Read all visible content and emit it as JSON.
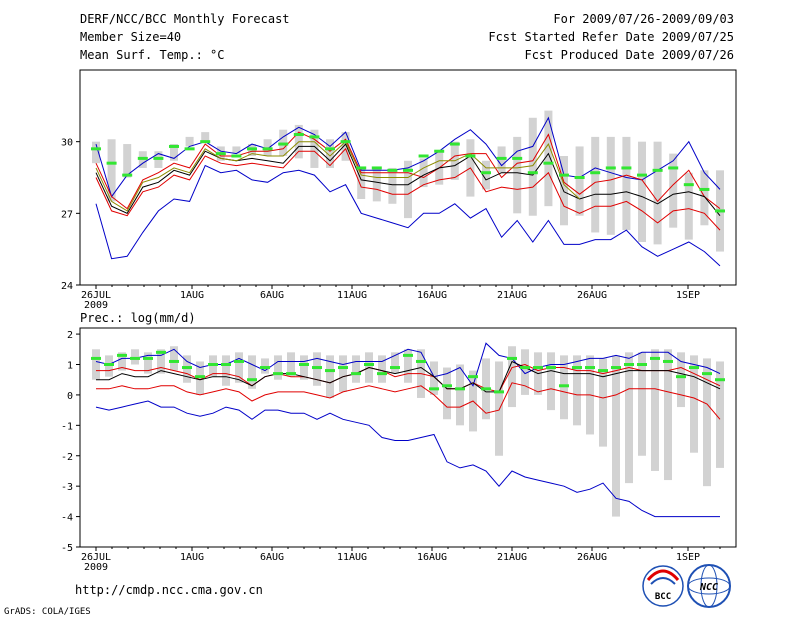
{
  "header": {
    "title": "DERF/NCC/BCC Monthly Forecast",
    "member": "Member Size=40",
    "variable": "Mean Surf. Temp.: °C",
    "period": "For 2009/07/26-2009/09/03",
    "refer": "Fcst Started Refer Date 2009/07/25",
    "produced": "Fcst Produced Date 2009/07/26"
  },
  "footer": {
    "url": "http://cmdp.ncc.cma.gov.cn",
    "grads": "GrADS: COLA/IGES",
    "logo1": "BCC",
    "logo2": "NCC"
  },
  "colors": {
    "blue": "#0000c8",
    "red": "#e00000",
    "black": "#000000",
    "bar": "#d2d2d2",
    "green": "#32e632",
    "olive": "#8c8c00"
  },
  "chart_data": [
    {
      "type": "line",
      "title": "Mean Surf. Temp.: °C",
      "x_labels": [
        "26JUL",
        "1AUG",
        "6AUG",
        "11AUG",
        "16AUG",
        "21AUG",
        "26AUG",
        "1SEP"
      ],
      "x_label_day_index": [
        0,
        6,
        11,
        16,
        21,
        26,
        31,
        37
      ],
      "x_sublabel": "2009",
      "ylim": [
        24,
        33
      ],
      "yticks": [
        24,
        27,
        30
      ],
      "series": [
        {
          "name": "max",
          "color": "#0000c8",
          "values": [
            29.9,
            27.7,
            28.6,
            29.1,
            29.5,
            29.3,
            29.8,
            30,
            29.6,
            29.5,
            29.9,
            29.7,
            30.2,
            30.6,
            30.3,
            29.8,
            30.4,
            28.8,
            28.8,
            28.8,
            28.9,
            29.2,
            29.6,
            30.1,
            30.5,
            29.9,
            29,
            29.6,
            29.8,
            31,
            28.6,
            28.5,
            28.9,
            28.7,
            28.5,
            28.4,
            28.8,
            29.2,
            30,
            28.7,
            28
          ]
        },
        {
          "name": "ens_high",
          "color": "#e00000",
          "values": [
            29.1,
            27.7,
            27.2,
            28.4,
            28.7,
            29.1,
            28.9,
            29.9,
            29.4,
            29.4,
            29.6,
            29.6,
            29.7,
            30.4,
            30.1,
            29.6,
            30.1,
            28.7,
            28.7,
            28.7,
            28.7,
            28.5,
            28.9,
            29.4,
            29.5,
            29.5,
            28.5,
            29.1,
            29.2,
            30.3,
            28.3,
            27.8,
            28.3,
            28.4,
            28.6,
            28.4,
            27.5,
            28.2,
            28.8,
            27.7,
            27.2
          ]
        },
        {
          "name": "ens_mean",
          "color": "#000000",
          "values": [
            28.7,
            27.3,
            27,
            28.1,
            28.3,
            28.8,
            28.6,
            29.6,
            29.3,
            29.2,
            29.3,
            29.2,
            29.1,
            29.8,
            29.8,
            29.2,
            29.9,
            28.4,
            28.3,
            28.2,
            28.2,
            28.6,
            28.9,
            29,
            29.4,
            28.4,
            28.7,
            28.7,
            28.6,
            29.5,
            27.9,
            27.6,
            27.8,
            27.8,
            27.9,
            27.7,
            27.4,
            27.8,
            27.9,
            27.7,
            26.9
          ]
        },
        {
          "name": "ens_low",
          "color": "#e00000",
          "values": [
            28.5,
            27.1,
            26.9,
            27.9,
            28.1,
            28.6,
            28.4,
            29.4,
            29.1,
            29,
            29.1,
            29,
            28.9,
            29.6,
            29.6,
            29,
            29.7,
            28.1,
            28,
            27.8,
            27.8,
            28.2,
            28.4,
            28.5,
            28.9,
            27.9,
            28.1,
            28,
            28.1,
            28.7,
            27.3,
            27,
            27.3,
            27.3,
            27.5,
            27.1,
            26.6,
            27.1,
            27.2,
            27,
            26.3
          ]
        },
        {
          "name": "min",
          "color": "#0000c8",
          "values": [
            27.4,
            25.1,
            25.2,
            26.2,
            27.1,
            27.6,
            27.5,
            29,
            28.7,
            28.8,
            28.4,
            28.3,
            28.7,
            28.8,
            28.6,
            27.9,
            28.2,
            27,
            26.8,
            26.6,
            26.4,
            27,
            27,
            27.4,
            26.8,
            27.2,
            26,
            26.7,
            25.8,
            26.7,
            25.7,
            25.7,
            25.9,
            25.9,
            26.3,
            25.6,
            25.2,
            25.5,
            25.8,
            25.4,
            24.8
          ]
        }
      ],
      "bars": {
        "name": "spread",
        "color": "#d2d2d2",
        "low": [
          29.1,
          27.5,
          28.5,
          28.9,
          28.9,
          29.2,
          29.8,
          30,
          29.2,
          29.5,
          29.4,
          29.4,
          29.4,
          29.3,
          28.9,
          28.9,
          29.2,
          27.6,
          27.5,
          27.4,
          26.8,
          28.1,
          28.2,
          28.4,
          27.7,
          28,
          28.7,
          27,
          26.9,
          27.3,
          26.5,
          26.9,
          26.2,
          26.1,
          26.3,
          25.8,
          25.7,
          26.4,
          25.9,
          26.5,
          25.4
        ],
        "high": [
          30,
          30.1,
          29.9,
          29.6,
          29.6,
          29.9,
          30.2,
          30.4,
          29.8,
          29.8,
          29.9,
          30.1,
          30.5,
          30.7,
          30.5,
          30.1,
          30.4,
          28.9,
          28.9,
          28.9,
          29.2,
          29.3,
          29.6,
          30,
          30.1,
          29.2,
          29.8,
          30.2,
          31,
          31.3,
          29.4,
          29.8,
          30.2,
          30.2,
          30.2,
          30,
          30,
          29.5,
          28.7,
          28.8,
          28.8
        ]
      },
      "markers": {
        "name": "green_mark",
        "color": "#32e632",
        "values": [
          29.7,
          29.1,
          28.6,
          29.3,
          29.3,
          29.8,
          29.7,
          30,
          29.5,
          29.4,
          29.7,
          29.7,
          29.9,
          30.3,
          30.2,
          29.7,
          30,
          28.9,
          28.9,
          28.8,
          28.8,
          29.4,
          29.6,
          29.9,
          29.4,
          28.7,
          29.3,
          29.3,
          28.7,
          29.1,
          28.6,
          28.5,
          28.7,
          28.9,
          28.9,
          28.6,
          28.8,
          28.9,
          28.2,
          28,
          27.1
        ]
      },
      "olive_line": {
        "color": "#8c8c00",
        "values": [
          28.9,
          27.5,
          27.1,
          28.3,
          28.5,
          28.9,
          28.7,
          29.7,
          29.3,
          29.2,
          29.5,
          29.4,
          29.4,
          30,
          30,
          29.4,
          30,
          28.6,
          28.5,
          28.5,
          28.5,
          28.9,
          29.2,
          29.2,
          29.5,
          28.9,
          28.9,
          28.9,
          29,
          29.9,
          28.2,
          27.6
        ]
      }
    },
    {
      "type": "line",
      "title": "Prec.: log(mm/d)",
      "x_labels": [
        "26JUL",
        "1AUG",
        "6AUG",
        "11AUG",
        "16AUG",
        "21AUG",
        "26AUG",
        "1SEP"
      ],
      "x_label_day_index": [
        0,
        6,
        11,
        16,
        21,
        26,
        31,
        37
      ],
      "x_sublabel": "2009",
      "ylim": [
        -5,
        2.2
      ],
      "yticks": [
        -5,
        -4,
        -3,
        -2,
        -1,
        0,
        1,
        2
      ],
      "series": [
        {
          "name": "max",
          "color": "#0000c8",
          "values": [
            1.1,
            1,
            1.2,
            1.2,
            1.3,
            1.3,
            1.5,
            1.1,
            0.9,
            1,
            1,
            1.2,
            1,
            0.8,
            1.1,
            1.1,
            1.1,
            1.2,
            1.1,
            1,
            1.1,
            1.1,
            1.1,
            1.3,
            1.5,
            1.4,
            0.6,
            0.7,
            0.9,
            0.3,
            1.7,
            1.3,
            1.2,
            0.7,
            0.9,
            1,
            1,
            1.1,
            1.2,
            1.2,
            1.3,
            1.2,
            1.4,
            1.4,
            1.4,
            1.1,
            1,
            0.9,
            0.7
          ]
        },
        {
          "name": "ens_high",
          "color": "#e00000",
          "values": [
            0.8,
            0.8,
            0.9,
            0.8,
            0.8,
            0.9,
            0.8,
            0.7,
            0.5,
            0.7,
            0.7,
            0.6,
            0.3,
            0.6,
            0.7,
            0.6,
            0.6,
            0.5,
            0.4,
            0.6,
            0.7,
            0.9,
            0.8,
            0.6,
            0.7,
            0.7,
            0.6,
            0.2,
            0.2,
            0.4,
            0.2,
            0.1,
            0.9,
            1,
            0.8,
            0.9,
            0.9,
            0.8,
            0.8,
            0.7,
            0.8,
            0.9,
            0.8,
            0.8,
            0.8,
            0.9,
            0.7,
            0.5,
            0.3
          ]
        },
        {
          "name": "ens_mean",
          "color": "#000000",
          "values": [
            0.5,
            0.5,
            0.7,
            0.6,
            0.6,
            0.8,
            0.7,
            0.6,
            0.5,
            0.6,
            0.6,
            0.5,
            0.3,
            0.6,
            0.7,
            0.7,
            0.6,
            0.5,
            0.4,
            0.6,
            0.7,
            0.9,
            0.8,
            0.7,
            0.8,
            0.9,
            0.6,
            0.2,
            0.2,
            0.4,
            0.1,
            0.1,
            1.1,
            0.9,
            0.7,
            0.8,
            0.7,
            0.7,
            0.7,
            0.6,
            0.7,
            0.8,
            0.8,
            0.8,
            0.8,
            0.7,
            0.6,
            0.4,
            0.2
          ]
        },
        {
          "name": "ens_low",
          "color": "#e00000",
          "values": [
            0.2,
            0.2,
            0.3,
            0.2,
            0.2,
            0.3,
            0.3,
            0.1,
            0,
            0.1,
            0.2,
            0.1,
            -0.2,
            0,
            0.1,
            0.1,
            0.1,
            0,
            -0.1,
            0.1,
            0.2,
            0.3,
            0.2,
            0.1,
            0.2,
            0.3,
            0,
            -0.4,
            -0.4,
            -0.2,
            -0.6,
            -0.5,
            0.4,
            0.3,
            0.1,
            0.2,
            0.1,
            0,
            0,
            -0.1,
            0,
            0.2,
            0.2,
            0.2,
            0.1,
            0,
            -0.1,
            -0.3,
            -0.8
          ]
        },
        {
          "name": "min",
          "color": "#0000c8",
          "values": [
            -0.4,
            -0.5,
            -0.4,
            -0.3,
            -0.2,
            -0.4,
            -0.4,
            -0.6,
            -0.7,
            -0.6,
            -0.4,
            -0.5,
            -0.8,
            -0.5,
            -0.5,
            -0.6,
            -0.6,
            -0.8,
            -0.6,
            -0.8,
            -0.9,
            -1,
            -1.4,
            -1.5,
            -1.5,
            -1.4,
            -1.3,
            -2.2,
            -2.4,
            -2.3,
            -2.5,
            -3,
            -2.5,
            -2.7,
            -2.8,
            -2.9,
            -3,
            -3.2,
            -3.1,
            -2.9,
            -3.4,
            -3.5,
            -3.8,
            -4,
            -4,
            -4,
            -4,
            -4,
            -4
          ]
        }
      ],
      "bars": {
        "name": "spread",
        "color": "#d2d2d2",
        "low": [
          0.5,
          0.6,
          0.8,
          1,
          0.7,
          0.7,
          0.8,
          0.4,
          0,
          0.6,
          0.3,
          0.4,
          0.2,
          0.7,
          0.5,
          0.6,
          0.5,
          0.3,
          -0.1,
          0.1,
          0.4,
          0.4,
          0.4,
          0.7,
          0.4,
          -0.1,
          0,
          -0.8,
          -1,
          -1.2,
          -0.8,
          -2,
          -0.4,
          0,
          0,
          -0.5,
          -0.8,
          -1,
          -1.3,
          -1.7,
          -4,
          -2.9,
          -2,
          -2.5,
          -2.8,
          -0.4,
          -1.9,
          -3,
          -2.4
        ],
        "high": [
          1.5,
          1.3,
          1.4,
          1.5,
          1.4,
          1.5,
          1.6,
          1.3,
          1.1,
          1.3,
          1.3,
          1.4,
          1.3,
          1.2,
          1.3,
          1.4,
          1.3,
          1.4,
          1.3,
          1.3,
          1.3,
          1.4,
          1.3,
          1.4,
          1.5,
          1.5,
          1.1,
          0.9,
          1,
          0.8,
          1.2,
          1.1,
          1.6,
          1.5,
          1.4,
          1.4,
          1.3,
          1.3,
          1.3,
          1.2,
          1.3,
          1.4,
          1.4,
          1.5,
          1.5,
          1.4,
          1.3,
          1.2,
          1.1
        ]
      },
      "markers": {
        "name": "green_mark",
        "color": "#32e632",
        "values": [
          1.2,
          1,
          1.3,
          1.2,
          1.2,
          1.4,
          1.1,
          0.9,
          0.6,
          1,
          1,
          1.1,
          0.5,
          0.9,
          0.7,
          0.7,
          1,
          0.9,
          0.8,
          0.9,
          0.7,
          1,
          0.7,
          0.9,
          1.3,
          1.1,
          0.2,
          0.3,
          0.2,
          0.6,
          0.2,
          0.1,
          1.2,
          0.9,
          0.9,
          0.9,
          0.3,
          0.9,
          0.9,
          0.8,
          0.9,
          1,
          1,
          1.2,
          1.1,
          0.6,
          0.9,
          0.7,
          0.5
        ]
      }
    }
  ]
}
